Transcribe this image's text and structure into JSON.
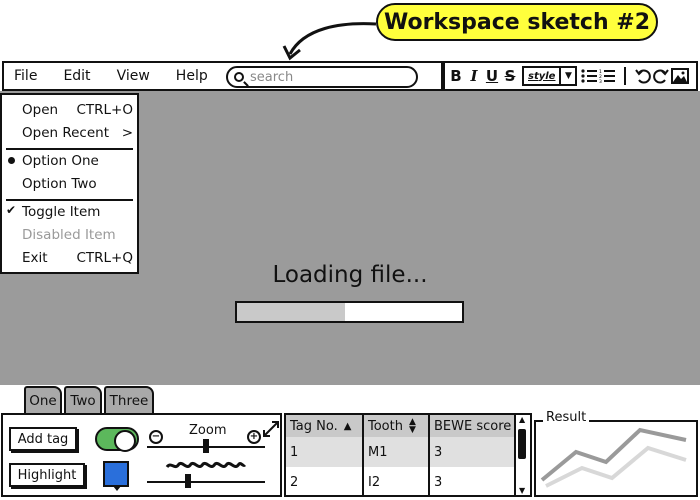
{
  "callout": {
    "text": "Workspace sketch #2"
  },
  "menubar": {
    "items": [
      "File",
      "Edit",
      "View",
      "Help"
    ],
    "search_placeholder": "search"
  },
  "toolbar": {
    "bold": "B",
    "italic": "I",
    "underline": "U",
    "strike": "S",
    "style_label": "style"
  },
  "file_menu": {
    "items": [
      {
        "label": "Open",
        "shortcut": "CTRL+O"
      },
      {
        "label": "Open Recent",
        "shortcut": ">"
      },
      {
        "label": "Option One",
        "shortcut": ""
      },
      {
        "label": "Option Two",
        "shortcut": ""
      },
      {
        "label": "Toggle Item",
        "shortcut": ""
      },
      {
        "label": "Disabled Item",
        "shortcut": ""
      },
      {
        "label": "Exit",
        "shortcut": "CTRL+Q"
      }
    ]
  },
  "loading": {
    "text": "Loading file...",
    "progress": 0.48
  },
  "tabs": [
    "One",
    "Two",
    "Three"
  ],
  "controls": {
    "add_tag": "Add tag",
    "highlight": "Highlight",
    "zoom_label": "Zoom",
    "toggle_on": true,
    "swatch_color": "#2a6fdb"
  },
  "table": {
    "headers": [
      "Tag No.",
      "Tooth",
      "BEWE score"
    ],
    "rows": [
      [
        "1",
        "M1",
        "3"
      ],
      [
        "2",
        "I2",
        "3"
      ]
    ]
  },
  "result": {
    "title": "Result"
  },
  "colors": {
    "main_bg": "#9b9b9b",
    "callout": "#ffff3c",
    "toggle": "#5cb85c"
  }
}
